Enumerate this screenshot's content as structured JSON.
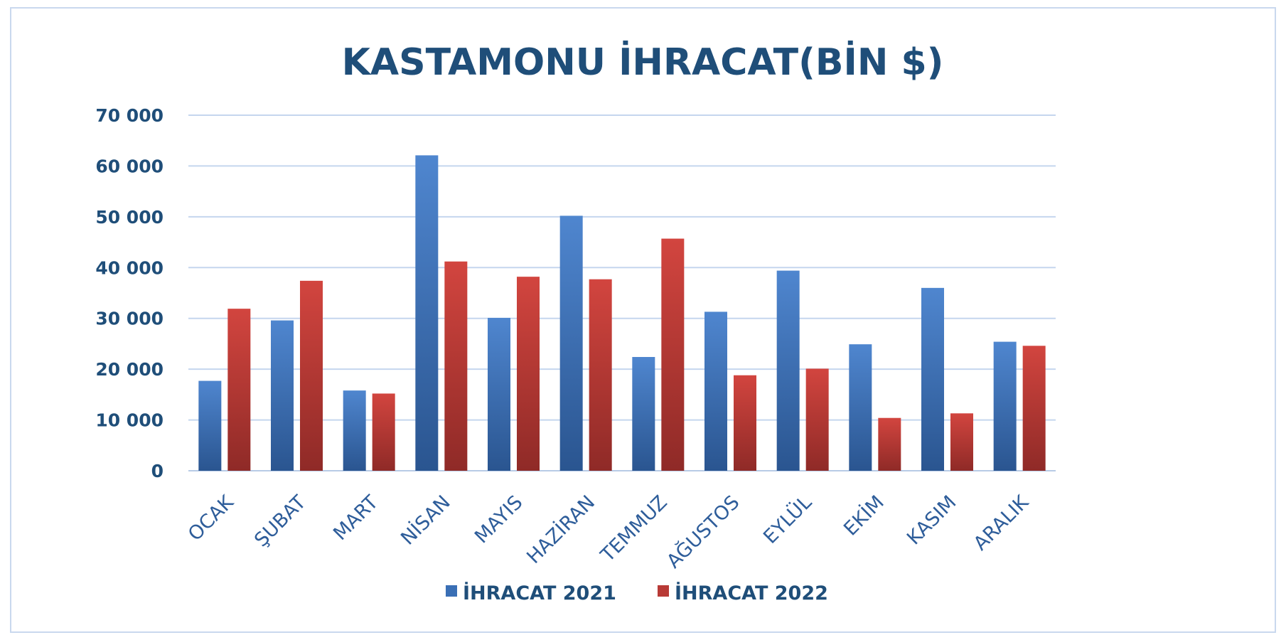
{
  "chart_data": {
    "type": "bar",
    "title": "KASTAMONU İHRACAT(BİN $)",
    "xlabel": "",
    "ylabel": "",
    "categories": [
      "OCAK",
      "ŞUBAT",
      "MART",
      "NİSAN",
      "MAYIS",
      "HAZİRAN",
      "TEMMUZ",
      "AĞUSTOS",
      "EYLÜL",
      "EKİM",
      "KASIM",
      "ARALIK"
    ],
    "series": [
      {
        "name": "İHRACAT 2021",
        "color": "#3a6fb5",
        "values": [
          17700,
          29600,
          15800,
          62100,
          30100,
          50200,
          22400,
          31300,
          39400,
          24900,
          36000,
          25400
        ]
      },
      {
        "name": "İHRACAT 2022",
        "color": "#b83a36",
        "values": [
          31900,
          37400,
          15200,
          41200,
          38200,
          37700,
          45700,
          18800,
          20100,
          10400,
          11300,
          24600
        ]
      }
    ],
    "ylim": [
      0,
      70000
    ],
    "yticks": [
      0,
      10000,
      20000,
      30000,
      40000,
      50000,
      60000,
      70000
    ],
    "ytick_labels": [
      "0",
      "10 000",
      "20 000",
      "30 000",
      "40 000",
      "50 000",
      "60 000",
      "70 000"
    ],
    "grid": true,
    "legend_position": "bottom"
  }
}
